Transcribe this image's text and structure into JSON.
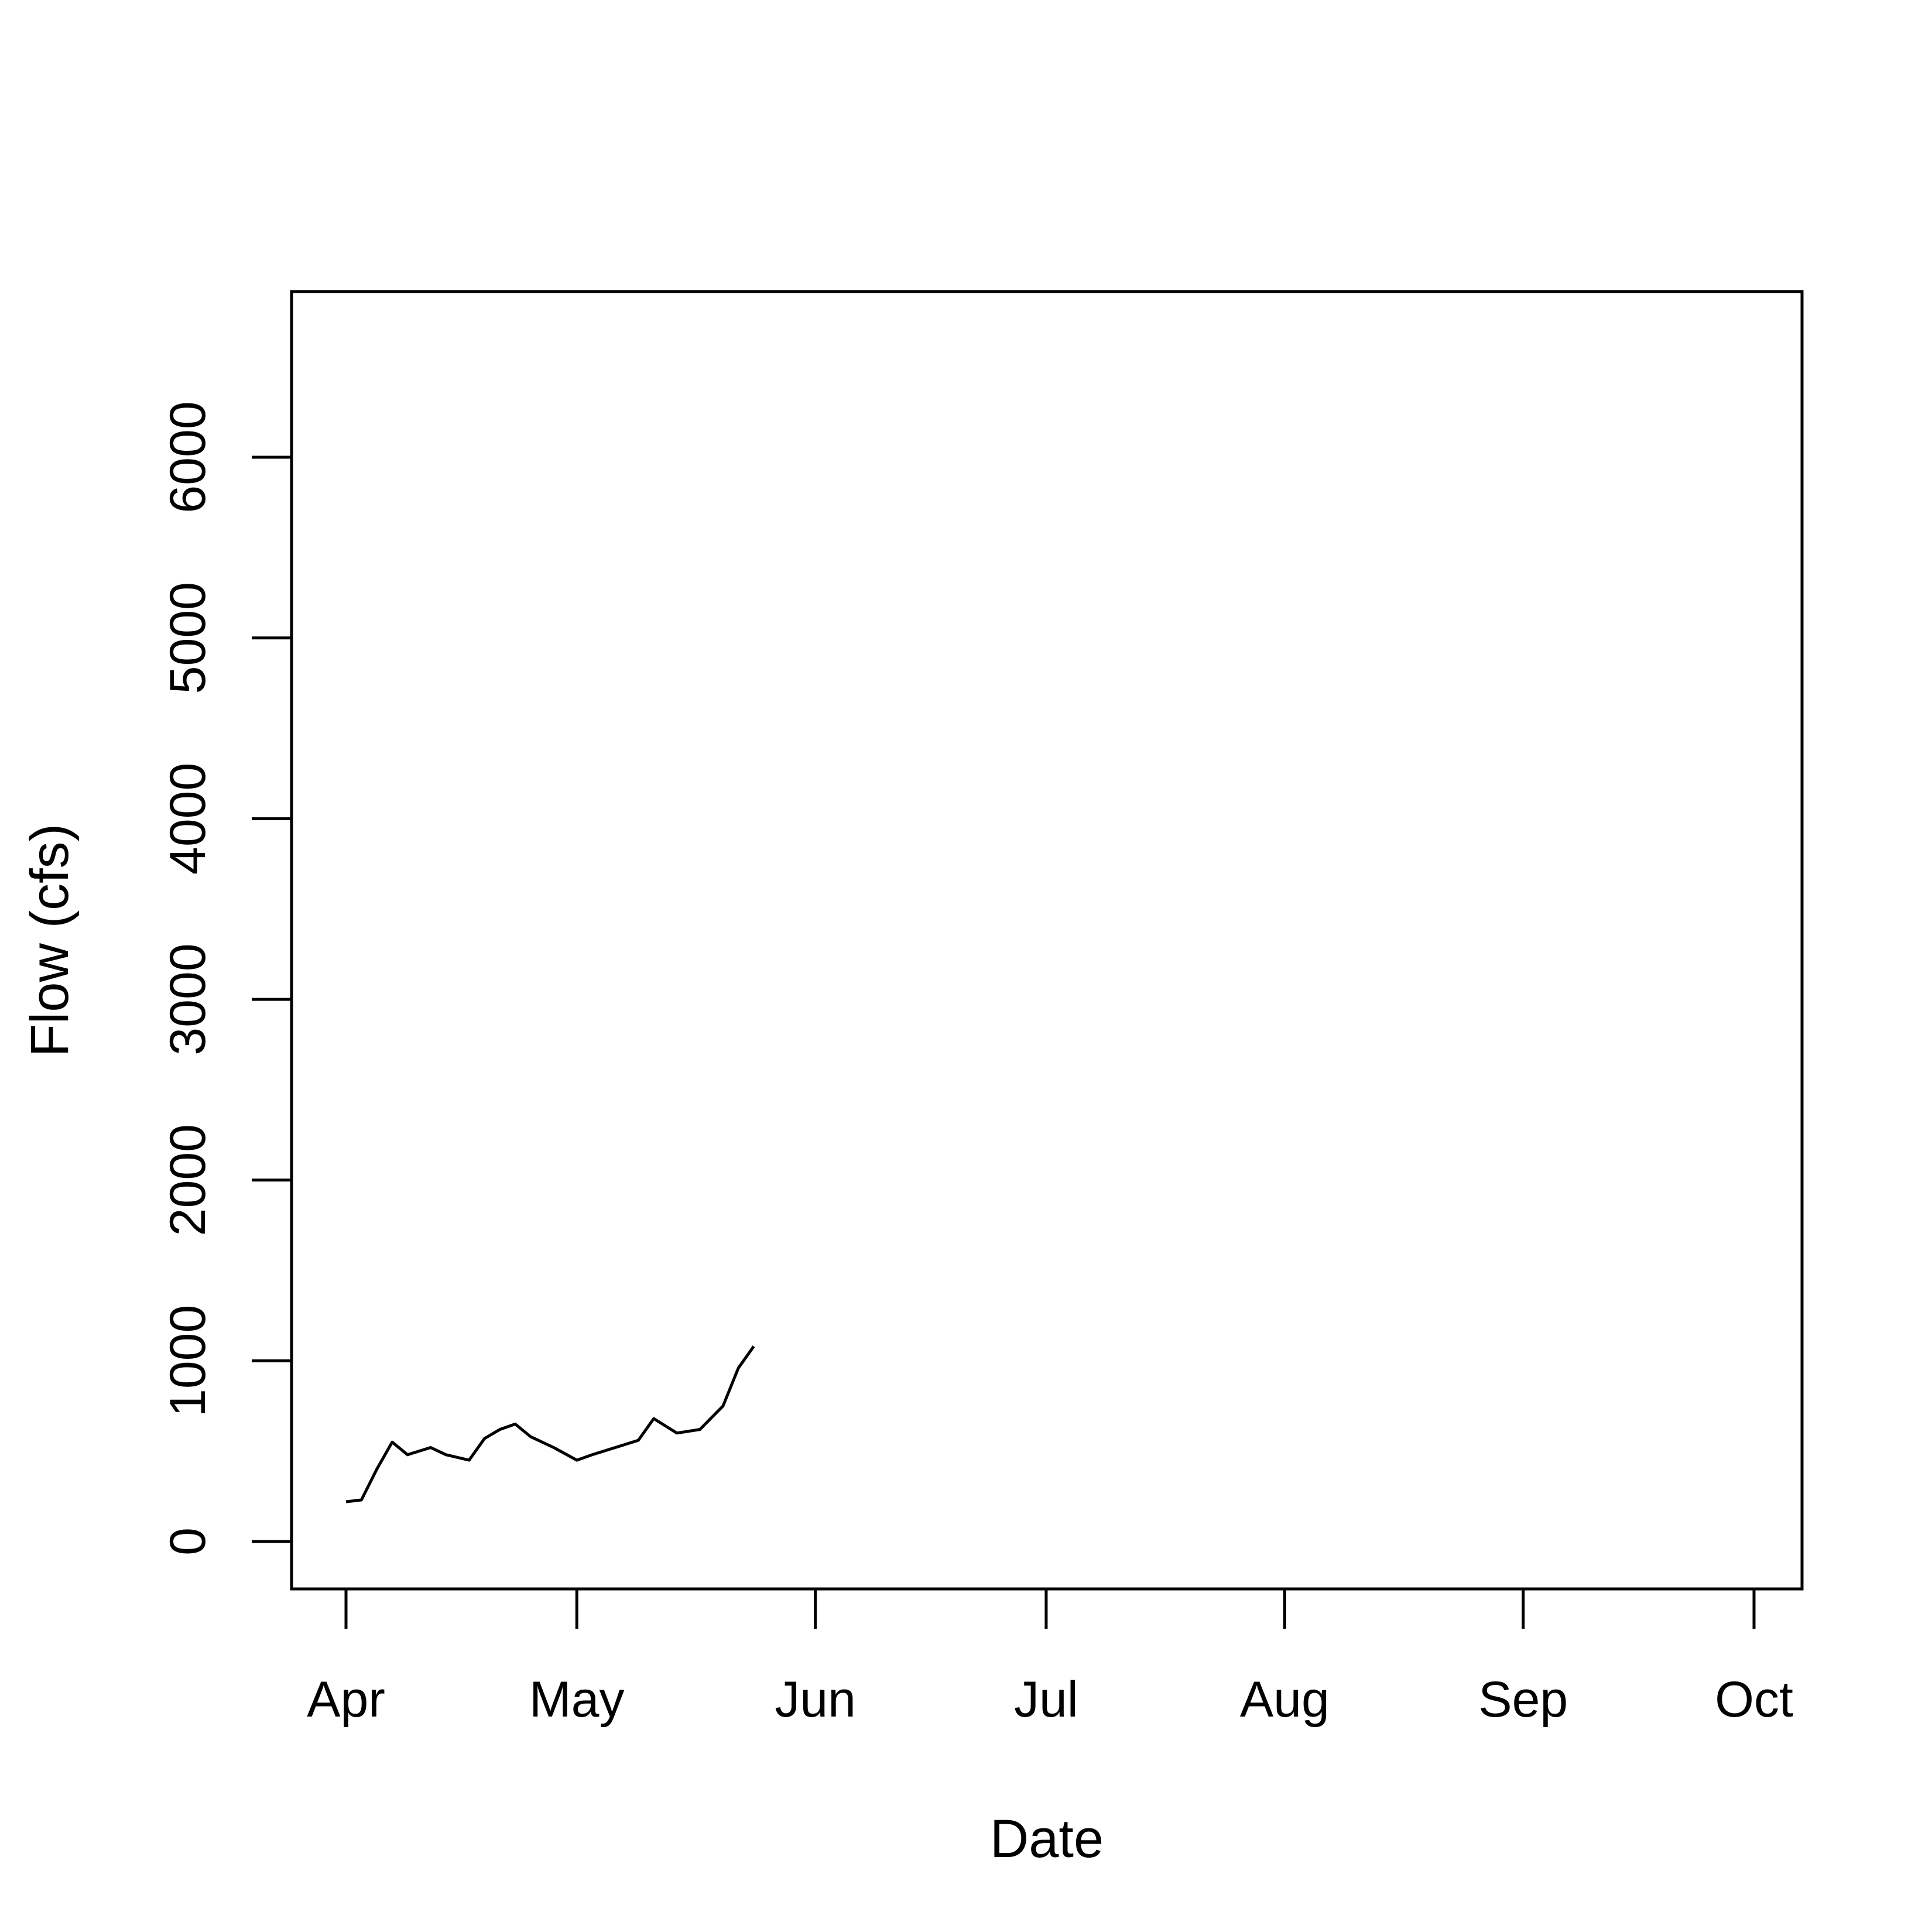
{
  "chart_data": {
    "type": "line",
    "title": "",
    "xlabel": "Date",
    "ylabel": "Flow (cfs)",
    "x_tick_labels": [
      "Apr",
      "May",
      "Jun",
      "Jul",
      "Aug",
      "Sep",
      "Oct"
    ],
    "x_tick_dates": [
      "04-01",
      "05-01",
      "06-01",
      "07-01",
      "08-01",
      "09-01",
      "10-01"
    ],
    "y_ticks": [
      0,
      1000,
      2000,
      3000,
      4000,
      5000,
      6000
    ],
    "ylim": [
      -270,
      6900
    ],
    "x_range_dates": [
      "03-24",
      "10-01"
    ],
    "grid": false,
    "legend": "none",
    "series": [
      {
        "color": "#000000",
        "points": [
          [
            "04-01",
            220
          ],
          [
            "04-03",
            230
          ],
          [
            "04-05",
            400
          ],
          [
            "04-07",
            550
          ],
          [
            "04-09",
            480
          ],
          [
            "04-12",
            520
          ],
          [
            "04-14",
            480
          ],
          [
            "04-17",
            450
          ],
          [
            "04-19",
            570
          ],
          [
            "04-21",
            620
          ],
          [
            "04-23",
            650
          ],
          [
            "04-25",
            580
          ],
          [
            "04-28",
            520
          ],
          [
            "05-01",
            450
          ],
          [
            "05-03",
            480
          ],
          [
            "05-06",
            520
          ],
          [
            "05-09",
            560
          ],
          [
            "05-11",
            680
          ],
          [
            "05-14",
            600
          ],
          [
            "05-17",
            620
          ],
          [
            "05-20",
            750
          ],
          [
            "05-22",
            960
          ],
          [
            "05-24,",
            1080
          ]
        ]
      }
    ]
  }
}
